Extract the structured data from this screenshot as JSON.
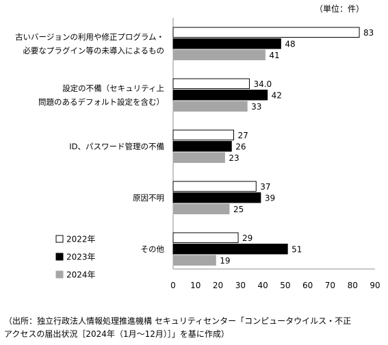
{
  "unit_label": "（単位：件）",
  "source": {
    "line1": "（出所：独立行政法人情報処理推進機構 セキュリティセンター「コンピュータウイルス・不正",
    "line2": "アクセスの届出状況［2024年（1月～12月）］」を基に作成）"
  },
  "chart_data": {
    "type": "bar",
    "orientation": "horizontal",
    "categories": [
      [
        "古いバージョンの利用や修正プログラム・",
        "必要なプラグイン等の未導入によるもの"
      ],
      [
        "設定の不備（セキュリティ上",
        "問題のあるデフォルト設定を含む）"
      ],
      [
        "ID、パスワード管理の不備"
      ],
      [
        "原因不明"
      ],
      [
        "その他"
      ]
    ],
    "series": [
      {
        "name": "2022年",
        "values": [
          83,
          34,
          27,
          37,
          29
        ],
        "labels": [
          "83",
          "34.0",
          "27",
          "37",
          "29"
        ],
        "color": "#ffffff",
        "stroke": "#000000"
      },
      {
        "name": "2023年",
        "values": [
          48,
          42,
          26,
          39,
          51
        ],
        "labels": [
          "48",
          "42",
          "26",
          "39",
          "51"
        ],
        "color": "#000000",
        "stroke": "#000000"
      },
      {
        "name": "2024年",
        "values": [
          41,
          33,
          23,
          25,
          19
        ],
        "labels": [
          "41",
          "33",
          "23",
          "25",
          "19"
        ],
        "color": "#a6a6a6",
        "stroke": "#a6a6a6"
      }
    ],
    "xlim": [
      0,
      90
    ],
    "xticks": [
      0,
      10,
      20,
      30,
      40,
      50,
      60,
      70,
      80,
      90
    ],
    "grid": false,
    "legend_position": "bottom-left"
  }
}
